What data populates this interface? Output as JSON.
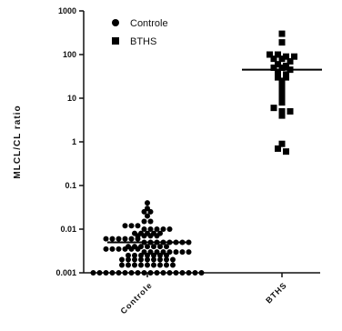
{
  "chart_data": {
    "type": "scatter",
    "ylabel": "MLCL/CL ratio",
    "yscale": "log",
    "ylim": [
      0.001,
      1000
    ],
    "yticks": [
      {
        "value": 0.001,
        "label": "0.001"
      },
      {
        "value": 0.01,
        "label": "0.01"
      },
      {
        "value": 0.1,
        "label": "0.1"
      },
      {
        "value": 1,
        "label": "1"
      },
      {
        "value": 10,
        "label": "10"
      },
      {
        "value": 100,
        "label": "100"
      },
      {
        "value": 1000,
        "label": "1000"
      }
    ],
    "categories": [
      "Controle",
      "BTHS"
    ],
    "legend": {
      "placement": "top-left",
      "entries": [
        "Controle",
        "BTHS"
      ]
    },
    "series": [
      {
        "name": "Controle",
        "marker": "circle",
        "color": "#000000",
        "mean": 0.005,
        "values": [
          0.04,
          0.03,
          0.025,
          0.025,
          0.02,
          0.015,
          0.015,
          0.012,
          0.012,
          0.012,
          0.01,
          0.01,
          0.01,
          0.01,
          0.01,
          0.008,
          0.008,
          0.008,
          0.008,
          0.008,
          0.007,
          0.007,
          0.007,
          0.007,
          0.006,
          0.006,
          0.006,
          0.006,
          0.006,
          0.006,
          0.005,
          0.005,
          0.005,
          0.005,
          0.005,
          0.005,
          0.005,
          0.005,
          0.004,
          0.004,
          0.004,
          0.004,
          0.004,
          0.004,
          0.004,
          0.0035,
          0.0035,
          0.0035,
          0.0035,
          0.0035,
          0.0035,
          0.003,
          0.003,
          0.003,
          0.003,
          0.003,
          0.003,
          0.003,
          0.003,
          0.0025,
          0.0025,
          0.0025,
          0.0025,
          0.0025,
          0.0025,
          0.0025,
          0.002,
          0.002,
          0.002,
          0.002,
          0.002,
          0.002,
          0.002,
          0.002,
          0.002,
          0.0015,
          0.0015,
          0.0015,
          0.0015,
          0.0015,
          0.0015,
          0.0015,
          0.0015,
          0.0015,
          0.001,
          0.001,
          0.001,
          0.001,
          0.001,
          0.001,
          0.001,
          0.001,
          0.001,
          0.001,
          0.001,
          0.001,
          0.001,
          0.001,
          0.001,
          0.001,
          0.001,
          0.001
        ]
      },
      {
        "name": "BTHS",
        "marker": "square",
        "color": "#000000",
        "mean": 45,
        "values": [
          300,
          190,
          100,
          100,
          90,
          90,
          80,
          80,
          70,
          60,
          55,
          50,
          50,
          45,
          40,
          35,
          30,
          30,
          25,
          20,
          15,
          12,
          10,
          8,
          6,
          5,
          5,
          4,
          0.9,
          0.7,
          0.6
        ]
      }
    ]
  }
}
